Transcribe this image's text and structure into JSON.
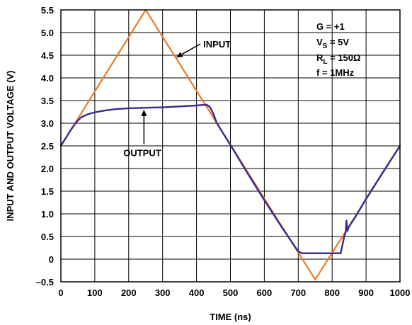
{
  "chart_data": {
    "type": "line",
    "title": "",
    "xlabel": "TIME (ns)",
    "ylabel": "INPUT AND OUTPUT VOLTAGE (V)",
    "xlim": [
      0,
      1000
    ],
    "ylim": [
      -0.5,
      5.5
    ],
    "grid": true,
    "x_ticks": [
      0,
      100,
      200,
      300,
      400,
      500,
      600,
      700,
      800,
      900,
      1000
    ],
    "x_tick_labels": [
      "0",
      "100",
      "200",
      "300",
      "400",
      "500",
      "600",
      "700",
      "800",
      "900",
      "1000"
    ],
    "y_ticks": [
      -0.5,
      0,
      0.5,
      1.0,
      1.5,
      2.0,
      2.5,
      3.0,
      3.5,
      4.0,
      4.5,
      5.0,
      5.5
    ],
    "y_tick_labels": [
      "–0.5",
      "0",
      "0.5",
      "1.0",
      "1.5",
      "2.0",
      "2.5",
      "3.0",
      "3.5",
      "4.0",
      "4.5",
      "5.0",
      "5.5"
    ],
    "series": [
      {
        "name": "INPUT",
        "color": "#f07a28",
        "x": [
          0,
          250,
          750,
          1000
        ],
        "y": [
          2.5,
          5.5,
          -0.45,
          2.5
        ]
      },
      {
        "name": "OUTPUT",
        "color": "#3a2a8c",
        "x": [
          0,
          15,
          30,
          45,
          60,
          80,
          100,
          130,
          160,
          200,
          250,
          300,
          350,
          400,
          430,
          440,
          450,
          460,
          470,
          500,
          550,
          600,
          650,
          690,
          700,
          710,
          725,
          750,
          790,
          810,
          825,
          830,
          835,
          840,
          842,
          845,
          850,
          870,
          900,
          950,
          1000
        ],
        "y": [
          2.5,
          2.68,
          2.86,
          3.02,
          3.13,
          3.2,
          3.24,
          3.28,
          3.31,
          3.33,
          3.34,
          3.35,
          3.37,
          3.39,
          3.41,
          3.35,
          3.2,
          3.0,
          2.88,
          2.52,
          1.9,
          1.3,
          0.72,
          0.28,
          0.17,
          0.13,
          0.13,
          0.13,
          0.13,
          0.13,
          0.13,
          0.3,
          0.48,
          0.6,
          0.85,
          0.62,
          0.72,
          0.95,
          1.33,
          1.92,
          2.5
        ]
      }
    ],
    "annotations": [
      {
        "text": "INPUT",
        "x": 420,
        "y": 4.75,
        "arrow_to_x": 340,
        "arrow_to_y": 4.45
      },
      {
        "text": "OUTPUT",
        "x": 240,
        "y": 2.35,
        "arrow_to_x": 245,
        "arrow_to_y": 3.33
      }
    ],
    "conditions": {
      "line1": {
        "text": "G = +1"
      },
      "line2": {
        "main": "V",
        "sub": "S",
        "rest": " = 5V"
      },
      "line3": {
        "main": "R",
        "sub": "L",
        "rest": " = 150Ω"
      },
      "line4": {
        "text": "f = 1MHz"
      }
    }
  }
}
